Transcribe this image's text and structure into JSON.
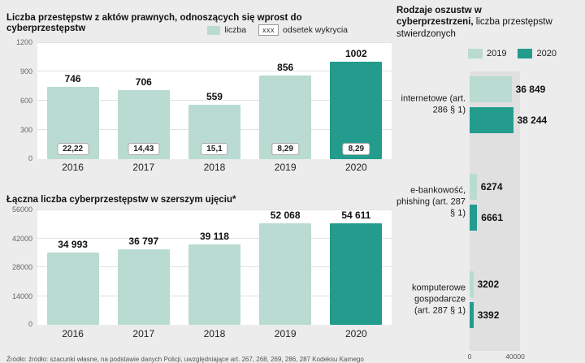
{
  "colors": {
    "light_teal": "#b9dbd1",
    "dark_teal": "#239b8d",
    "page_bg": "#ececec",
    "plot_bg": "#ffffff",
    "panel_bg": "#e0e0e0"
  },
  "footer": {
    "text": "Źródło: źródło: szacunki własne, na podstawie danych Policji, uwzględniające art. 267, 268, 269, 286, 287 Kodeksu Karnego"
  },
  "chart_data": [
    {
      "type": "bar",
      "title": "Liczba przestępstw z aktów prawnych, odnoszących się wprost do cyberprzestępstw",
      "legend": [
        {
          "label": "liczba"
        },
        {
          "label": "odsetek wykrycia",
          "marker": "xxx"
        }
      ],
      "categories": [
        "2016",
        "2017",
        "2018",
        "2019",
        "2020"
      ],
      "values": [
        746,
        706,
        559,
        856,
        1002
      ],
      "value_labels": [
        "746",
        "706",
        "559",
        "856",
        "1002"
      ],
      "detection_rates": [
        "22,22",
        "14,43",
        "15,1",
        "8,29",
        "8,29"
      ],
      "ylim": [
        0,
        1200
      ],
      "yticks": [
        0,
        300,
        600,
        900,
        1200
      ],
      "highlight_last": true,
      "grid": true,
      "legend_position": "top-right"
    },
    {
      "type": "bar",
      "title": "Łączna liczba cyberprzestępstw w szerszym ujęciu*",
      "categories": [
        "2016",
        "2017",
        "2018",
        "2019",
        "2020"
      ],
      "values": [
        34993,
        36797,
        39118,
        52068,
        54611
      ],
      "value_labels": [
        "34 993",
        "36 797",
        "39 118",
        "52 068",
        "54 611"
      ],
      "ylim": [
        0,
        56000
      ],
      "yticks": [
        0,
        14000,
        28000,
        42000,
        56000
      ],
      "highlight_last": true,
      "grid": true
    },
    {
      "type": "bar-horizontal",
      "title_bold": "Rodzaje oszustw w cyberprzestrzeni,",
      "title_rest": " liczba przestępstw stwierdzonych",
      "legend": [
        {
          "label": "2019"
        },
        {
          "label": "2020"
        }
      ],
      "categories": [
        "internetowe (art. 286 § 1)",
        "e-bankowość, phishing (art. 287 § 1)",
        "komputerowe gospodarcze (art. 287 § 1)"
      ],
      "series": [
        {
          "name": "2019",
          "values": [
            36849,
            6274,
            3202
          ],
          "value_labels": [
            "36 849",
            "6274",
            "3202"
          ]
        },
        {
          "name": "2020",
          "values": [
            38244,
            6661,
            3392
          ],
          "value_labels": [
            "38 244",
            "6661",
            "3392"
          ]
        }
      ],
      "xlim": [
        0,
        40000
      ],
      "xticks": [
        "0",
        "40000"
      ],
      "legend_position": "top"
    }
  ]
}
